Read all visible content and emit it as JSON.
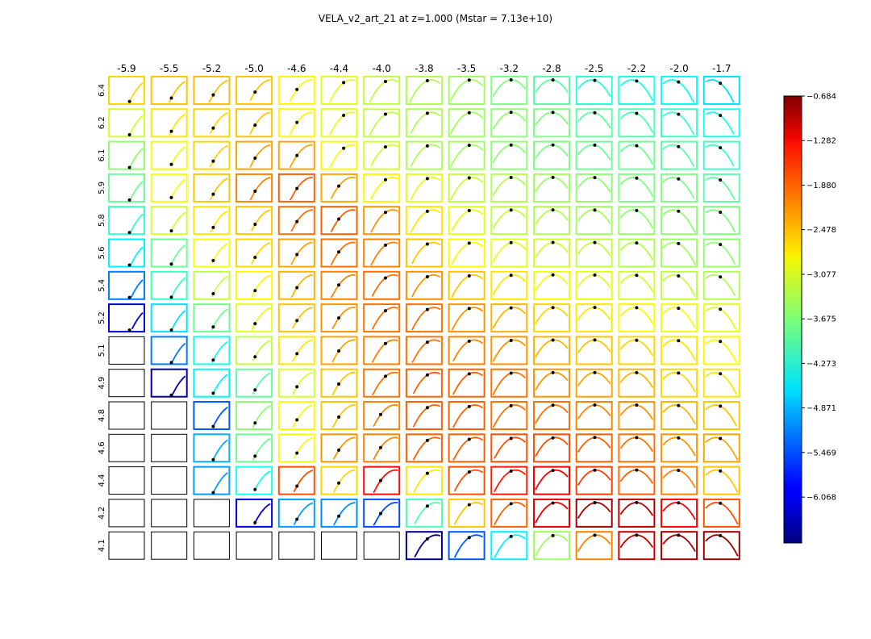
{
  "chart_data": {
    "type": "heatmap",
    "title": "VELA_v2_art_21 at z=1.000 (Mstar = 7.13e+10)",
    "columns": [
      "-5.9",
      "-5.5",
      "-5.2",
      "-5.0",
      "-4.6",
      "-4.4",
      "-4.0",
      "-3.8",
      "-3.5",
      "-3.2",
      "-2.8",
      "-2.5",
      "-2.2",
      "-2.0",
      "-1.7"
    ],
    "rows": [
      "6.4",
      "6.2",
      "6.1",
      "5.9",
      "5.8",
      "5.6",
      "5.4",
      "5.2",
      "5.1",
      "4.9",
      "4.8",
      "4.6",
      "4.4",
      "4.2",
      "4.1"
    ],
    "colormap": "jet",
    "colorbar": {
      "range": [
        -6.684,
        -0.684
      ],
      "ticks": [
        "-0.684",
        "-1.282",
        "-1.880",
        "-2.478",
        "-3.077",
        "-3.675",
        "-4.273",
        "-4.871",
        "-5.469",
        "-6.068"
      ],
      "placement": "right"
    },
    "cell_values": [
      [
        -2.7,
        -2.6,
        -2.55,
        -2.6,
        -2.9,
        -3.1,
        -3.3,
        -3.4,
        -3.5,
        -3.7,
        -3.9,
        -4.2,
        -4.3,
        -4.4,
        -4.6
      ],
      [
        -3.2,
        -2.8,
        -2.7,
        -2.6,
        -2.9,
        -3.1,
        -3.3,
        -3.4,
        -3.5,
        -3.6,
        -3.7,
        -3.9,
        -4.0,
        -4.1,
        -4.3
      ],
      [
        -3.6,
        -3.0,
        -2.7,
        -2.4,
        -2.4,
        -2.9,
        -3.2,
        -3.4,
        -3.5,
        -3.6,
        -3.7,
        -3.8,
        -3.8,
        -3.9,
        -4.1
      ],
      [
        -3.8,
        -3.0,
        -2.6,
        -2.2,
        -2.0,
        -2.4,
        -2.9,
        -3.1,
        -3.3,
        -3.4,
        -3.5,
        -3.6,
        -3.7,
        -3.7,
        -3.9
      ],
      [
        -4.1,
        -3.2,
        -2.8,
        -2.6,
        -2.1,
        -2.0,
        -2.3,
        -2.8,
        -3.1,
        -3.3,
        -3.4,
        -3.5,
        -3.6,
        -3.6,
        -3.7
      ],
      [
        -4.5,
        -3.8,
        -3.0,
        -2.7,
        -2.4,
        -2.1,
        -2.2,
        -2.6,
        -2.9,
        -3.1,
        -3.2,
        -3.3,
        -3.4,
        -3.5,
        -3.6
      ],
      [
        -5.2,
        -4.1,
        -3.3,
        -2.9,
        -2.5,
        -2.2,
        -2.1,
        -2.3,
        -2.6,
        -2.8,
        -3.0,
        -3.1,
        -3.2,
        -3.3,
        -3.4
      ],
      [
        -6.1,
        -4.6,
        -3.8,
        -3.1,
        -2.6,
        -2.3,
        -2.1,
        -2.1,
        -2.3,
        -2.5,
        -2.7,
        -2.8,
        -2.9,
        -3.0,
        -3.1
      ],
      [
        null,
        -5.2,
        -4.3,
        -3.3,
        -2.8,
        -2.4,
        -2.2,
        -2.1,
        -2.2,
        -2.3,
        -2.5,
        -2.6,
        -2.7,
        -2.8,
        -2.9
      ],
      [
        null,
        -6.4,
        -4.5,
        -3.9,
        -3.2,
        -2.6,
        -2.1,
        -2.0,
        -2.0,
        -2.1,
        -2.3,
        -2.4,
        -2.5,
        -2.7,
        -2.8
      ],
      [
        null,
        null,
        -5.4,
        -3.6,
        -3.0,
        -2.6,
        -2.2,
        -2.0,
        -2.0,
        -2.1,
        -2.1,
        -2.2,
        -2.3,
        -2.5,
        -2.6
      ],
      [
        null,
        null,
        -4.9,
        -3.8,
        -3.0,
        -2.3,
        -2.2,
        -2.0,
        -2.0,
        -1.9,
        -1.9,
        -2.0,
        -2.1,
        -2.3,
        -2.4
      ],
      [
        null,
        null,
        -5.0,
        -4.3,
        -1.9,
        -2.7,
        -1.5,
        -2.8,
        -1.9,
        -1.6,
        -1.4,
        -1.8,
        -2.0,
        -2.2,
        -2.6
      ],
      [
        null,
        null,
        null,
        -6.1,
        -5.0,
        -5.1,
        -5.5,
        -4.0,
        -2.6,
        -2.0,
        -1.3,
        -0.9,
        -1.0,
        -1.4,
        -1.9
      ],
      [
        null,
        null,
        null,
        null,
        null,
        null,
        null,
        -6.6,
        -5.4,
        -4.5,
        -3.5,
        -2.2,
        -1.1,
        -0.9,
        -0.85
      ]
    ]
  }
}
